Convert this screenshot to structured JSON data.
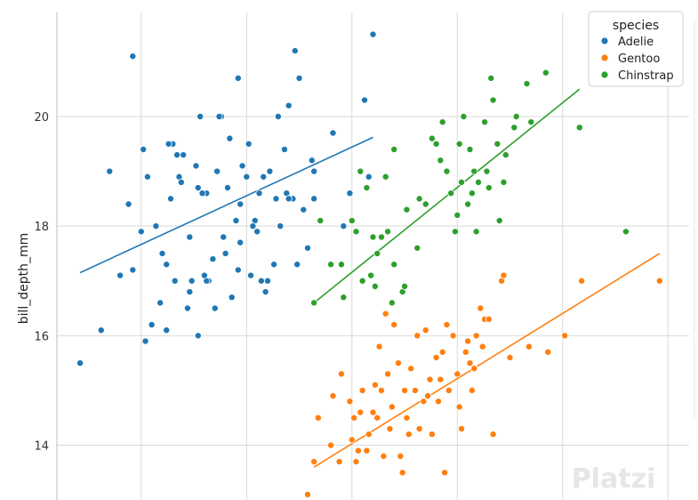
{
  "chart_data": {
    "type": "scatter",
    "ylabel": "bill_depth_mm",
    "xlabel": "",
    "ylim": [
      13.0,
      21.9
    ],
    "yticks": [
      14,
      16,
      18,
      20
    ],
    "xlim": [
      31.0,
      61.0
    ],
    "grid": true,
    "legend": {
      "title": "species",
      "placement": "top-right",
      "entries": [
        "Adelie",
        "Gentoo",
        "Chinstrap"
      ]
    },
    "watermark": "Platzi",
    "series": [
      {
        "name": "Adelie",
        "color": "#1f77b4",
        "regression": [
          [
            32.1,
            17.15
          ],
          [
            46.0,
            19.62
          ]
        ],
        "points": [
          [
            32.1,
            15.5
          ],
          [
            33.1,
            16.1
          ],
          [
            33.5,
            19.0
          ],
          [
            34.0,
            17.1
          ],
          [
            34.4,
            18.4
          ],
          [
            34.6,
            17.2
          ],
          [
            34.6,
            21.1
          ],
          [
            35.0,
            17.9
          ],
          [
            35.3,
            18.9
          ],
          [
            35.5,
            16.2
          ],
          [
            35.1,
            19.4
          ],
          [
            36.0,
            17.5
          ],
          [
            35.7,
            18.0
          ],
          [
            35.9,
            16.6
          ],
          [
            36.2,
            17.3
          ],
          [
            36.4,
            18.5
          ],
          [
            36.6,
            17.0
          ],
          [
            36.5,
            19.5
          ],
          [
            36.8,
            18.9
          ],
          [
            37.0,
            19.3
          ],
          [
            37.2,
            16.5
          ],
          [
            37.3,
            17.8
          ],
          [
            37.6,
            19.1
          ],
          [
            37.7,
            18.7
          ],
          [
            37.8,
            20.0
          ],
          [
            38.1,
            18.6
          ],
          [
            38.2,
            17.0
          ],
          [
            38.4,
            17.4
          ],
          [
            38.6,
            19.0
          ],
          [
            38.8,
            20.0
          ],
          [
            39.0,
            17.5
          ],
          [
            39.2,
            19.6
          ],
          [
            39.5,
            18.1
          ],
          [
            39.6,
            20.7
          ],
          [
            39.7,
            17.7
          ],
          [
            40.0,
            18.9
          ],
          [
            40.2,
            17.1
          ],
          [
            40.4,
            18.1
          ],
          [
            40.6,
            18.6
          ],
          [
            40.8,
            18.9
          ],
          [
            41.1,
            19.0
          ],
          [
            41.3,
            17.3
          ],
          [
            41.4,
            18.5
          ],
          [
            41.5,
            20.0
          ],
          [
            41.8,
            19.4
          ],
          [
            42.0,
            20.2
          ],
          [
            42.2,
            18.5
          ],
          [
            42.3,
            21.2
          ],
          [
            42.5,
            20.7
          ],
          [
            42.7,
            18.3
          ],
          [
            43.1,
            19.2
          ],
          [
            43.2,
            18.5
          ],
          [
            42.9,
            17.6
          ],
          [
            44.1,
            19.7
          ],
          [
            44.6,
            18.0
          ],
          [
            45.6,
            20.3
          ],
          [
            45.8,
            18.9
          ],
          [
            46.0,
            21.5
          ],
          [
            40.9,
            16.8
          ],
          [
            41.6,
            18.0
          ],
          [
            39.7,
            18.4
          ],
          [
            37.9,
            18.6
          ],
          [
            36.7,
            19.3
          ],
          [
            38.9,
            17.8
          ],
          [
            39.8,
            19.1
          ],
          [
            40.3,
            18.0
          ],
          [
            35.2,
            15.9
          ],
          [
            36.2,
            16.1
          ],
          [
            37.3,
            16.8
          ],
          [
            38.5,
            16.5
          ],
          [
            39.6,
            17.2
          ],
          [
            40.5,
            17.9
          ],
          [
            41.0,
            17.0
          ],
          [
            37.7,
            16.0
          ],
          [
            38.1,
            17.0
          ],
          [
            39.3,
            16.7
          ],
          [
            40.7,
            17.0
          ],
          [
            42.4,
            17.3
          ],
          [
            43.5,
            18.1
          ],
          [
            44.9,
            18.6
          ],
          [
            36.9,
            18.8
          ],
          [
            38.0,
            17.1
          ],
          [
            39.1,
            18.7
          ],
          [
            41.9,
            18.6
          ],
          [
            43.2,
            19.0
          ],
          [
            37.4,
            17.0
          ],
          [
            40.1,
            19.5
          ],
          [
            42.0,
            18.5
          ],
          [
            36.3,
            19.5
          ],
          [
            38.7,
            20.0
          ]
        ]
      },
      {
        "name": "Gentoo",
        "color": "#ff7f0e",
        "regression": [
          [
            43.2,
            13.6
          ],
          [
            59.6,
            17.5
          ]
        ],
        "points": [
          [
            43.2,
            13.7
          ],
          [
            43.4,
            14.5
          ],
          [
            44.0,
            14.0
          ],
          [
            44.4,
            13.7
          ],
          [
            44.5,
            15.3
          ],
          [
            45.0,
            14.1
          ],
          [
            45.1,
            14.5
          ],
          [
            45.3,
            13.9
          ],
          [
            45.5,
            15.0
          ],
          [
            45.8,
            14.2
          ],
          [
            46.1,
            15.1
          ],
          [
            46.2,
            14.5
          ],
          [
            46.4,
            15.0
          ],
          [
            46.5,
            13.8
          ],
          [
            46.7,
            15.3
          ],
          [
            46.8,
            14.3
          ],
          [
            47.0,
            16.2
          ],
          [
            47.2,
            15.5
          ],
          [
            47.3,
            13.8
          ],
          [
            47.5,
            15.0
          ],
          [
            47.6,
            14.5
          ],
          [
            47.8,
            15.4
          ],
          [
            48.1,
            16.0
          ],
          [
            48.2,
            14.3
          ],
          [
            48.4,
            14.8
          ],
          [
            48.5,
            16.1
          ],
          [
            48.7,
            15.2
          ],
          [
            48.8,
            14.2
          ],
          [
            49.0,
            15.6
          ],
          [
            49.1,
            14.8
          ],
          [
            49.3,
            15.7
          ],
          [
            49.5,
            16.2
          ],
          [
            49.6,
            15.0
          ],
          [
            49.8,
            16.0
          ],
          [
            50.0,
            15.3
          ],
          [
            50.2,
            14.3
          ],
          [
            50.4,
            15.7
          ],
          [
            50.5,
            15.9
          ],
          [
            50.7,
            15.0
          ],
          [
            50.8,
            15.4
          ],
          [
            51.1,
            16.5
          ],
          [
            51.3,
            16.3
          ],
          [
            51.5,
            16.3
          ],
          [
            52.1,
            17.0
          ],
          [
            52.2,
            17.1
          ],
          [
            52.5,
            15.6
          ],
          [
            53.4,
            15.8
          ],
          [
            54.3,
            15.7
          ],
          [
            55.1,
            16.0
          ],
          [
            55.9,
            17.0
          ],
          [
            59.6,
            17.0
          ],
          [
            45.2,
            13.7
          ],
          [
            46.0,
            14.6
          ],
          [
            47.7,
            14.2
          ],
          [
            48.6,
            14.9
          ],
          [
            49.2,
            15.2
          ],
          [
            50.1,
            14.7
          ],
          [
            50.6,
            15.5
          ],
          [
            51.2,
            15.8
          ],
          [
            47.4,
            13.5
          ],
          [
            45.7,
            13.9
          ],
          [
            44.9,
            14.8
          ],
          [
            46.6,
            16.4
          ],
          [
            48.0,
            15.0
          ],
          [
            49.4,
            13.5
          ],
          [
            46.9,
            14.7
          ],
          [
            50.9,
            16.0
          ],
          [
            51.7,
            14.2
          ],
          [
            42.9,
            13.1
          ],
          [
            44.1,
            14.9
          ],
          [
            46.3,
            15.8
          ],
          [
            45.4,
            14.6
          ]
        ]
      },
      {
        "name": "Chinstrap",
        "color": "#2ca02c",
        "regression": [
          [
            43.2,
            16.6
          ],
          [
            55.8,
            20.5
          ]
        ],
        "points": [
          [
            43.2,
            16.6
          ],
          [
            44.0,
            17.3
          ],
          [
            44.6,
            16.7
          ],
          [
            45.0,
            18.1
          ],
          [
            45.5,
            17.0
          ],
          [
            45.7,
            18.7
          ],
          [
            45.9,
            17.1
          ],
          [
            46.1,
            16.9
          ],
          [
            46.4,
            17.8
          ],
          [
            46.6,
            18.9
          ],
          [
            46.7,
            17.9
          ],
          [
            46.9,
            16.6
          ],
          [
            47.0,
            17.3
          ],
          [
            47.4,
            16.8
          ],
          [
            47.6,
            18.3
          ],
          [
            48.1,
            17.6
          ],
          [
            48.5,
            18.4
          ],
          [
            48.8,
            19.6
          ],
          [
            49.0,
            19.5
          ],
          [
            49.3,
            19.9
          ],
          [
            49.5,
            19.0
          ],
          [
            49.7,
            18.6
          ],
          [
            49.9,
            17.9
          ],
          [
            50.1,
            19.5
          ],
          [
            50.2,
            18.8
          ],
          [
            50.3,
            20.0
          ],
          [
            50.5,
            18.4
          ],
          [
            50.6,
            19.4
          ],
          [
            50.8,
            19.0
          ],
          [
            50.9,
            17.9
          ],
          [
            51.0,
            18.8
          ],
          [
            51.3,
            19.9
          ],
          [
            51.4,
            19.0
          ],
          [
            51.5,
            18.7
          ],
          [
            51.7,
            20.3
          ],
          [
            51.9,
            19.5
          ],
          [
            52.0,
            18.1
          ],
          [
            52.2,
            18.8
          ],
          [
            52.7,
            19.8
          ],
          [
            52.8,
            20.0
          ],
          [
            53.5,
            19.9
          ],
          [
            54.2,
            20.8
          ],
          [
            55.8,
            19.8
          ],
          [
            58.0,
            17.9
          ],
          [
            43.5,
            18.1
          ],
          [
            44.5,
            17.3
          ],
          [
            45.2,
            17.9
          ],
          [
            46.2,
            17.5
          ],
          [
            47.5,
            16.9
          ],
          [
            48.2,
            18.5
          ],
          [
            49.2,
            19.2
          ],
          [
            50.0,
            18.2
          ],
          [
            50.7,
            18.6
          ],
          [
            51.6,
            20.7
          ],
          [
            52.3,
            19.3
          ],
          [
            53.3,
            20.6
          ],
          [
            45.4,
            19.0
          ],
          [
            46.0,
            17.8
          ],
          [
            47.0,
            19.4
          ]
        ]
      }
    ]
  }
}
